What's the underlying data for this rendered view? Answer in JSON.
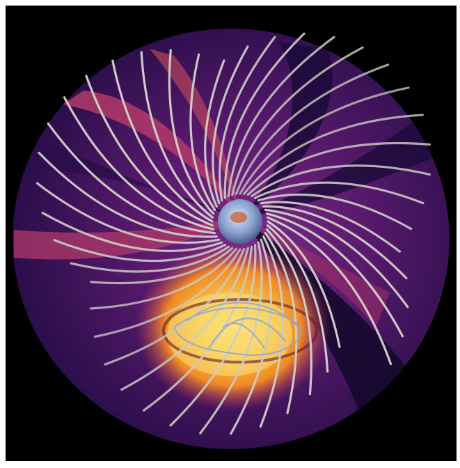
{
  "scene": {
    "subject": "simulation-render",
    "palette": {
      "frame": "#000000",
      "outer_bg": "#ffffff",
      "disk_dark": "#1c0b3a",
      "disk_mid": "#5a1a6e",
      "disk_warm": "#b2396a",
      "disk_orange": "#f08a24",
      "disk_yellow": "#f8c64a",
      "line_color": "#cfcac6",
      "star_color": "#8aa2d0",
      "star_core": "#c86a4a"
    },
    "icons": [
      "central-sphere-icon",
      "field-line-icon"
    ]
  }
}
